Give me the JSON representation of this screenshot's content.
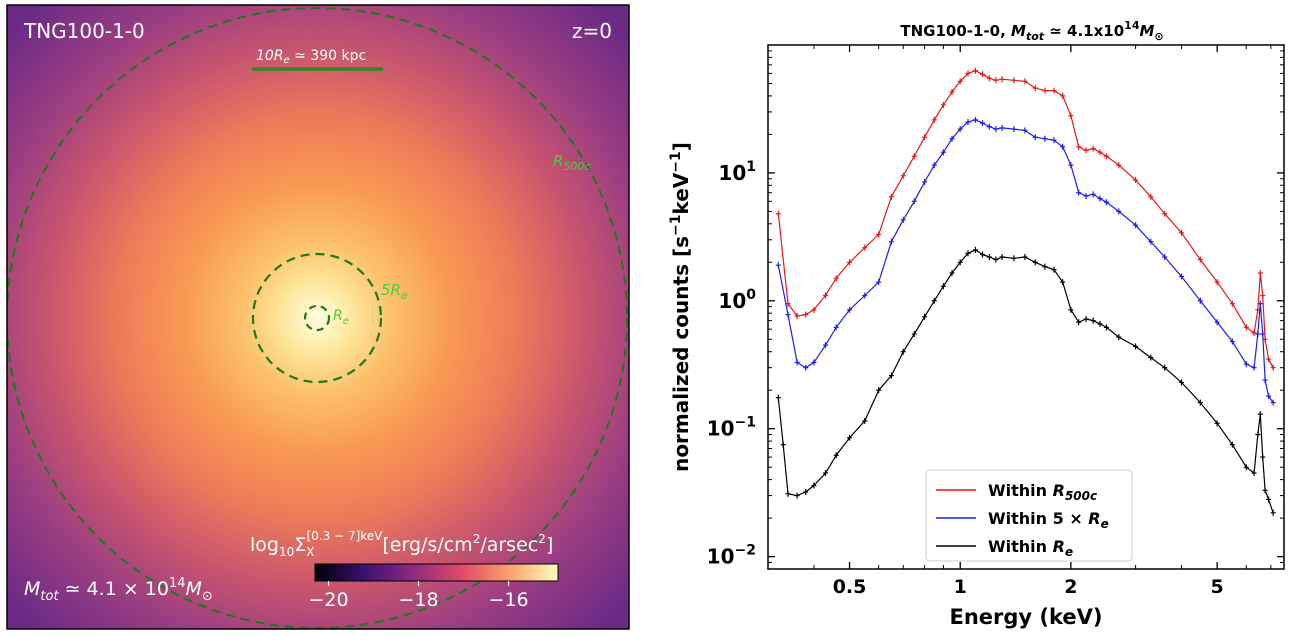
{
  "left_panel": {
    "simulation_label": "TNG100-1-0",
    "redshift_label": "z=0",
    "scale_bar_label": "10R",
    "scale_bar_sub": "e",
    "scale_bar_value": " ≃ 390 kpc",
    "mass_label_prefix": "M",
    "mass_label_sub": "tot",
    "mass_label_value": " ≃ 4.1 × 10",
    "mass_label_exp": "14",
    "mass_label_unit": "M",
    "mass_label_unit_sub": "⊙",
    "circle_labels": {
      "r500c_main": "R",
      "r500c_sub": "500c",
      "five_re_main": "5R",
      "five_re_sub": "e",
      "re_main": "R",
      "re_sub": "e"
    },
    "colorbar": {
      "label_prefix": "log",
      "label_sub": "10",
      "label_sigma": "Σ",
      "label_sigma_sub": "X",
      "label_sigma_sup": "[0.3 − 7]keV",
      "label_units": "[erg/s/cm",
      "label_units_sup": "2",
      "label_units_end": "/arsec",
      "label_units_sup2": "2",
      "label_units_close": "]",
      "ticks": [
        "−20",
        "−18",
        "−16"
      ],
      "tick_values": [
        -20,
        -18,
        -16
      ],
      "range": [
        -20.3,
        -14.9
      ],
      "colors": [
        "#000004",
        "#3b0f70",
        "#8c2981",
        "#de4968",
        "#fe9f6d",
        "#fcfdbf"
      ]
    },
    "colors": {
      "circle": "#1a7a1a",
      "circle_label": "#4ccf3a",
      "scale_bar": "#2a8a2a"
    }
  },
  "chart_data": {
    "type": "line",
    "title_prefix": "TNG100-1-0, ",
    "title_m": "M",
    "title_m_sub": "tot",
    "title_value": " ≃ 4.1x10",
    "title_exp": "14",
    "title_unit": "M",
    "title_unit_sub": "⊙",
    "xlabel": "Energy (keV)",
    "ylabel_main": "normalized counts [s",
    "ylabel_sup1": "−1",
    "ylabel_mid": "keV",
    "ylabel_sup2": "−1",
    "ylabel_end": "]",
    "xscale": "log",
    "yscale": "log",
    "xlim": [
      0.3,
      7.6
    ],
    "ylim": [
      0.008,
      100
    ],
    "xticks": [
      0.5,
      1,
      2,
      5
    ],
    "xtick_labels": [
      "0.5",
      "1",
      "2",
      "5"
    ],
    "yticks": [
      0.01,
      0.1,
      1,
      10
    ],
    "ytick_base": "10",
    "ytick_exps": [
      "−2",
      "−1",
      "0",
      "1"
    ],
    "legend_position": "lower-center",
    "series": [
      {
        "name_prefix": "Within ",
        "name_main": "R",
        "name_sub": "500c",
        "color": "#e41a1c",
        "x": [
          0.32,
          0.34,
          0.36,
          0.38,
          0.4,
          0.43,
          0.46,
          0.5,
          0.55,
          0.6,
          0.65,
          0.7,
          0.75,
          0.8,
          0.85,
          0.9,
          0.95,
          1.0,
          1.05,
          1.1,
          1.15,
          1.2,
          1.25,
          1.3,
          1.4,
          1.5,
          1.6,
          1.7,
          1.8,
          1.9,
          2.0,
          2.1,
          2.2,
          2.3,
          2.4,
          2.5,
          2.7,
          3.0,
          3.3,
          3.6,
          4.0,
          4.5,
          5.0,
          5.5,
          6.0,
          6.3,
          6.45,
          6.55,
          6.65,
          6.75,
          6.9,
          7.1
        ],
        "y": [
          4.8,
          0.95,
          0.76,
          0.78,
          0.85,
          1.1,
          1.5,
          2.0,
          2.6,
          3.3,
          6.5,
          9.5,
          13.5,
          19.0,
          26.0,
          34.0,
          43.0,
          52.0,
          60.0,
          63.0,
          59.0,
          55.0,
          53.0,
          54.0,
          53.0,
          52.0,
          46.0,
          44.0,
          44.0,
          40.0,
          28.0,
          16.0,
          15.0,
          15.5,
          14.5,
          13.5,
          11.5,
          8.8,
          6.5,
          4.8,
          3.4,
          2.1,
          1.4,
          0.95,
          0.62,
          0.56,
          0.85,
          1.65,
          1.1,
          0.5,
          0.35,
          0.3
        ]
      },
      {
        "name_prefix": "Within 5 × ",
        "name_main": "R",
        "name_sub": "e",
        "color": "#1f1fe6",
        "x": [
          0.32,
          0.34,
          0.36,
          0.38,
          0.4,
          0.43,
          0.46,
          0.5,
          0.55,
          0.6,
          0.65,
          0.7,
          0.75,
          0.8,
          0.85,
          0.9,
          0.95,
          1.0,
          1.05,
          1.1,
          1.15,
          1.2,
          1.25,
          1.3,
          1.4,
          1.5,
          1.6,
          1.7,
          1.8,
          1.9,
          2.0,
          2.1,
          2.2,
          2.3,
          2.4,
          2.5,
          2.7,
          3.0,
          3.3,
          3.6,
          4.0,
          4.5,
          5.0,
          5.5,
          6.0,
          6.3,
          6.45,
          6.55,
          6.65,
          6.75,
          6.9,
          7.1
        ],
        "y": [
          1.9,
          0.78,
          0.33,
          0.3,
          0.33,
          0.45,
          0.62,
          0.85,
          1.1,
          1.4,
          2.9,
          4.3,
          6.0,
          8.5,
          11.5,
          14.5,
          18.5,
          22.0,
          25.0,
          26.0,
          24.5,
          23.0,
          22.0,
          22.5,
          22.0,
          21.5,
          19.0,
          18.5,
          18.0,
          16.0,
          11.5,
          7.0,
          6.6,
          6.8,
          6.3,
          5.9,
          5.0,
          3.9,
          2.9,
          2.2,
          1.55,
          1.0,
          0.68,
          0.48,
          0.32,
          0.3,
          0.55,
          0.95,
          0.55,
          0.24,
          0.18,
          0.16
        ]
      },
      {
        "name_prefix": "Within ",
        "name_main": "R",
        "name_sub": "e",
        "color": "#000000",
        "x": [
          0.32,
          0.33,
          0.34,
          0.36,
          0.38,
          0.4,
          0.43,
          0.46,
          0.5,
          0.55,
          0.6,
          0.65,
          0.7,
          0.75,
          0.8,
          0.85,
          0.9,
          0.95,
          1.0,
          1.05,
          1.1,
          1.15,
          1.2,
          1.25,
          1.3,
          1.4,
          1.5,
          1.6,
          1.7,
          1.8,
          1.9,
          2.0,
          2.1,
          2.2,
          2.3,
          2.4,
          2.5,
          2.7,
          3.0,
          3.3,
          3.6,
          4.0,
          4.5,
          5.0,
          5.5,
          6.0,
          6.3,
          6.45,
          6.55,
          6.65,
          6.75,
          6.9,
          7.1
        ],
        "y": [
          0.175,
          0.075,
          0.031,
          0.03,
          0.032,
          0.036,
          0.045,
          0.062,
          0.085,
          0.115,
          0.2,
          0.26,
          0.4,
          0.55,
          0.75,
          1.0,
          1.3,
          1.65,
          2.0,
          2.35,
          2.5,
          2.3,
          2.2,
          2.1,
          2.2,
          2.15,
          2.2,
          2.0,
          1.85,
          1.75,
          1.4,
          0.85,
          0.68,
          0.72,
          0.7,
          0.66,
          0.62,
          0.52,
          0.44,
          0.36,
          0.3,
          0.23,
          0.16,
          0.11,
          0.075,
          0.05,
          0.045,
          0.09,
          0.13,
          0.06,
          0.033,
          0.028,
          0.022
        ]
      }
    ]
  }
}
